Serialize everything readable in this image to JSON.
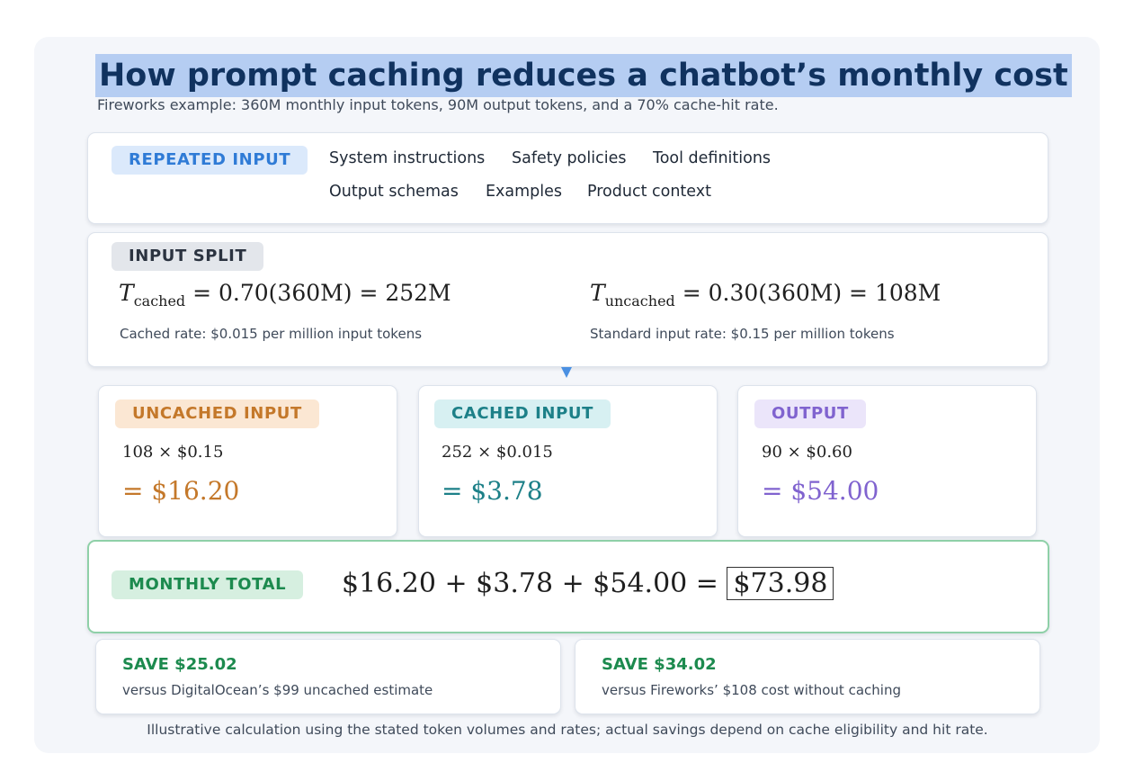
{
  "title": "How prompt caching reduces a chatbot’s monthly cost",
  "subtitle": "Fireworks example: 360M monthly input tokens, 90M output tokens, and a 70% cache-hit rate.",
  "repeated": {
    "label": "REPEATED INPUT",
    "items": [
      "System instructions",
      "Safety policies",
      "Tool definitions",
      "Output schemas",
      "Examples",
      "Product context"
    ]
  },
  "split": {
    "label": "INPUT SPLIT",
    "cached": {
      "var": "T",
      "sub": "cached",
      "eq": " = 0.70(360M) = 252M",
      "note": "Cached rate: $0.015 per million input tokens"
    },
    "uncached": {
      "var": "T",
      "sub": "uncached",
      "eq": " = 0.30(360M) = 108M",
      "note": "Standard input rate: $0.15 per million tokens"
    }
  },
  "costs": [
    {
      "label": "UNCACHED INPUT",
      "formula": "108 × $0.15",
      "result": "= $16.20",
      "color": "#c4782a",
      "bg": "#fbe7d3"
    },
    {
      "label": "CACHED INPUT",
      "formula": "252 × $0.015",
      "result": "= $3.78",
      "color": "#1d8088",
      "bg": "#d7f0f2"
    },
    {
      "label": "OUTPUT",
      "formula": "90 × $0.60",
      "result": "= $54.00",
      "color": "#8063cf",
      "bg": "#ebe5fa"
    }
  ],
  "total": {
    "label": "MONTHLY TOTAL",
    "expr": "$16.20 + $3.78 + $54.00 =",
    "value": "$73.98"
  },
  "savings": [
    {
      "title": "SAVE $25.02",
      "text": "versus DigitalOcean’s $99 uncached estimate"
    },
    {
      "title": "SAVE $34.02",
      "text": "versus Fireworks’ $108 cost without caching"
    }
  ],
  "footer": "Illustrative calculation using the stated token volumes and rates; actual savings depend on cache eligibility and hit rate.",
  "colors": {
    "title_highlight": "#b5cdf2",
    "title_text": "#10325f",
    "total_border": "#8fd0a8",
    "save_green": "#1c8a4e"
  }
}
